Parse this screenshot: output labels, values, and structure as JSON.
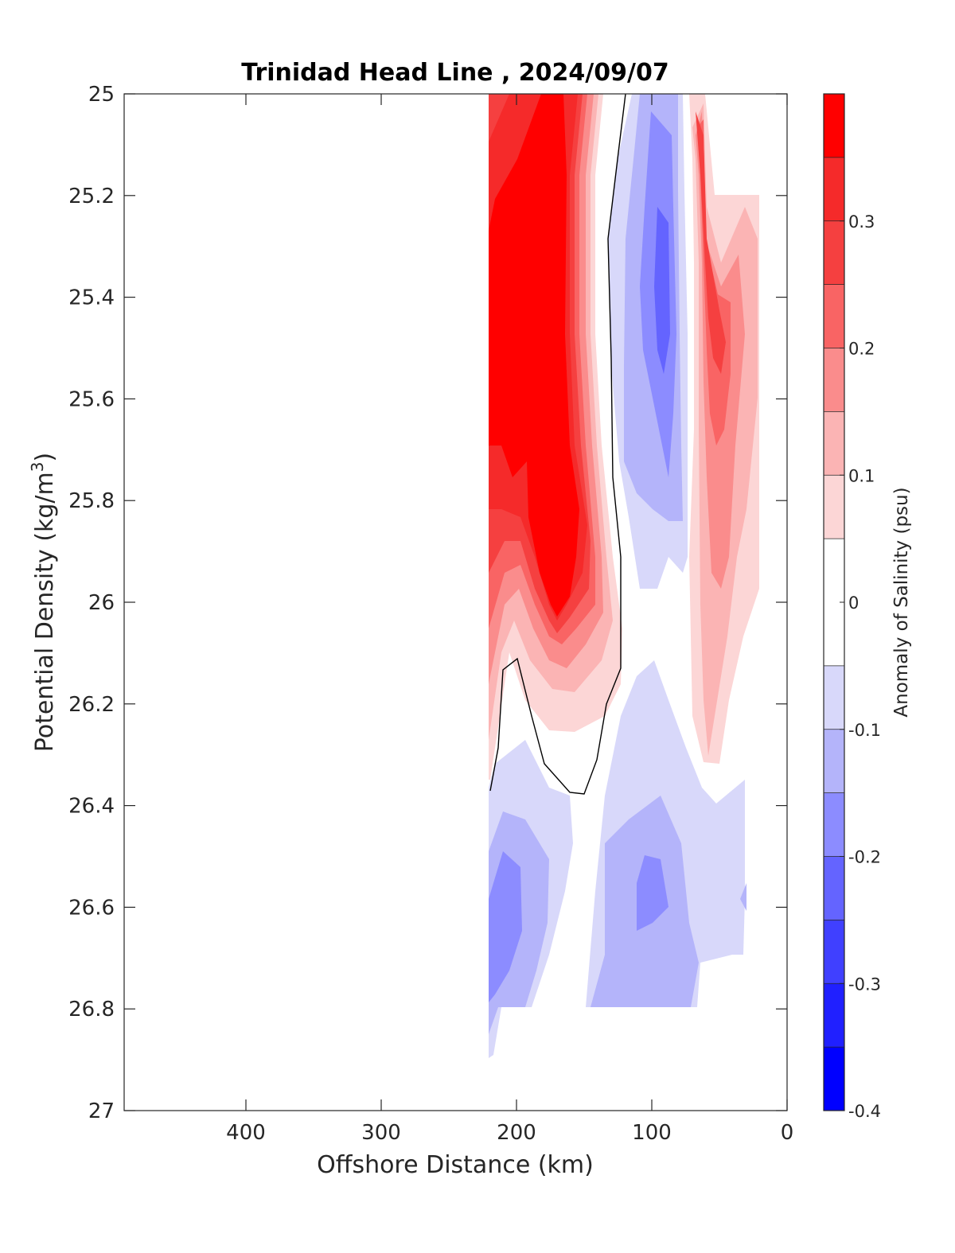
{
  "chart_data": {
    "type": "contour",
    "title": "Trinidad Head Line , 2024/09/07",
    "xlabel": "Offshore Distance (km)",
    "ylabel_main": "Potential Density (kg/m",
    "ylabel_sup": "3",
    "ylabel_end": ")",
    "xlim": [
      490,
      0
    ],
    "x_reversed": true,
    "ylim": [
      25,
      27
    ],
    "y_reversed": true,
    "x_ticks": [
      "400",
      "300",
      "200",
      "100",
      "0"
    ],
    "x_tick_values": [
      400,
      300,
      200,
      100,
      0
    ],
    "y_ticks": [
      "25",
      "25.2",
      "25.4",
      "25.6",
      "25.8",
      "26",
      "26.2",
      "26.4",
      "26.6",
      "26.8",
      "27"
    ],
    "y_tick_values": [
      25,
      25.2,
      25.4,
      25.6,
      25.8,
      26,
      26.2,
      26.4,
      26.6,
      26.8,
      27
    ],
    "colorbar": {
      "label": "Anomaly of Salinity (psu)",
      "limits": [
        -0.4,
        0.4
      ],
      "tick_labels": [
        "0.3",
        "0.2",
        "0.1",
        "0",
        "-0.1",
        "-0.2",
        "-0.3",
        "-0.4"
      ],
      "tick_values": [
        0.3,
        0.2,
        0.1,
        0,
        -0.1,
        -0.2,
        -0.3,
        -0.4
      ],
      "levels": [
        -0.4,
        -0.35,
        -0.3,
        -0.25,
        -0.2,
        -0.15,
        -0.1,
        -0.05,
        0.05,
        0.1,
        0.15,
        0.2,
        0.25,
        0.3,
        0.35,
        0.4
      ],
      "colors": [
        "#0000ff",
        "#2020ff",
        "#4040ff",
        "#6464ff",
        "#8c8cff",
        "#b4b4fa",
        "#d8d8fa",
        "#ffffff",
        "#fcd6d6",
        "#fbb4b4",
        "#fa8c8c",
        "#f96464",
        "#f54040",
        "#f52a2a",
        "#ff0000"
      ]
    },
    "data_coverage_x_km": [
      20,
      222
    ],
    "zero_contour_color": "#000000",
    "fields": {
      "near_shore_positive_anomaly": {
        "x_km": [
          20,
          75
        ],
        "sigma": [
          25.0,
          26.4
        ],
        "max_value": 0.35
      },
      "offshore_positive_core": {
        "x_km": [
          130,
          222
        ],
        "sigma": [
          25.0,
          26.25
        ],
        "max_value": 0.4
      },
      "mid_shelf_negative_band": {
        "x_km": [
          75,
          125
        ],
        "sigma": [
          25.0,
          25.95
        ],
        "min_value": -0.25
      },
      "deep_negative_anomaly_offshore": {
        "x_km": [
          165,
          222
        ],
        "sigma": [
          26.3,
          26.9
        ],
        "min_value": -0.2
      },
      "deep_negative_anomaly_midshelf": {
        "x_km": [
          65,
          145
        ],
        "sigma": [
          26.35,
          26.8
        ],
        "min_value": -0.2
      }
    }
  }
}
